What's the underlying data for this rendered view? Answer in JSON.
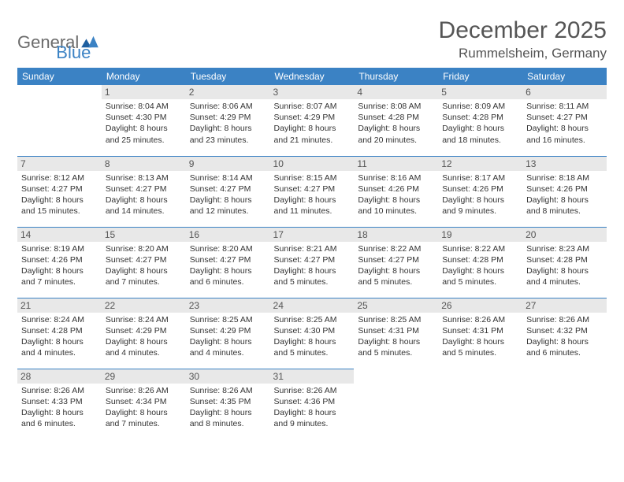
{
  "logo": {
    "word1": "General",
    "word2": "Blue"
  },
  "title": "December 2025",
  "location": "Rummelsheim, Germany",
  "colors": {
    "header_bg": "#3b82c4",
    "header_text": "#ffffff",
    "daynum_bg": "#e8e8e8",
    "text": "#333333",
    "rule": "#3b82c4"
  },
  "day_headers": [
    "Sunday",
    "Monday",
    "Tuesday",
    "Wednesday",
    "Thursday",
    "Friday",
    "Saturday"
  ],
  "weeks": [
    [
      null,
      {
        "n": "1",
        "sr": "Sunrise: 8:04 AM",
        "ss": "Sunset: 4:30 PM",
        "d1": "Daylight: 8 hours",
        "d2": "and 25 minutes."
      },
      {
        "n": "2",
        "sr": "Sunrise: 8:06 AM",
        "ss": "Sunset: 4:29 PM",
        "d1": "Daylight: 8 hours",
        "d2": "and 23 minutes."
      },
      {
        "n": "3",
        "sr": "Sunrise: 8:07 AM",
        "ss": "Sunset: 4:29 PM",
        "d1": "Daylight: 8 hours",
        "d2": "and 21 minutes."
      },
      {
        "n": "4",
        "sr": "Sunrise: 8:08 AM",
        "ss": "Sunset: 4:28 PM",
        "d1": "Daylight: 8 hours",
        "d2": "and 20 minutes."
      },
      {
        "n": "5",
        "sr": "Sunrise: 8:09 AM",
        "ss": "Sunset: 4:28 PM",
        "d1": "Daylight: 8 hours",
        "d2": "and 18 minutes."
      },
      {
        "n": "6",
        "sr": "Sunrise: 8:11 AM",
        "ss": "Sunset: 4:27 PM",
        "d1": "Daylight: 8 hours",
        "d2": "and 16 minutes."
      }
    ],
    [
      {
        "n": "7",
        "sr": "Sunrise: 8:12 AM",
        "ss": "Sunset: 4:27 PM",
        "d1": "Daylight: 8 hours",
        "d2": "and 15 minutes."
      },
      {
        "n": "8",
        "sr": "Sunrise: 8:13 AM",
        "ss": "Sunset: 4:27 PM",
        "d1": "Daylight: 8 hours",
        "d2": "and 14 minutes."
      },
      {
        "n": "9",
        "sr": "Sunrise: 8:14 AM",
        "ss": "Sunset: 4:27 PM",
        "d1": "Daylight: 8 hours",
        "d2": "and 12 minutes."
      },
      {
        "n": "10",
        "sr": "Sunrise: 8:15 AM",
        "ss": "Sunset: 4:27 PM",
        "d1": "Daylight: 8 hours",
        "d2": "and 11 minutes."
      },
      {
        "n": "11",
        "sr": "Sunrise: 8:16 AM",
        "ss": "Sunset: 4:26 PM",
        "d1": "Daylight: 8 hours",
        "d2": "and 10 minutes."
      },
      {
        "n": "12",
        "sr": "Sunrise: 8:17 AM",
        "ss": "Sunset: 4:26 PM",
        "d1": "Daylight: 8 hours",
        "d2": "and 9 minutes."
      },
      {
        "n": "13",
        "sr": "Sunrise: 8:18 AM",
        "ss": "Sunset: 4:26 PM",
        "d1": "Daylight: 8 hours",
        "d2": "and 8 minutes."
      }
    ],
    [
      {
        "n": "14",
        "sr": "Sunrise: 8:19 AM",
        "ss": "Sunset: 4:26 PM",
        "d1": "Daylight: 8 hours",
        "d2": "and 7 minutes."
      },
      {
        "n": "15",
        "sr": "Sunrise: 8:20 AM",
        "ss": "Sunset: 4:27 PM",
        "d1": "Daylight: 8 hours",
        "d2": "and 7 minutes."
      },
      {
        "n": "16",
        "sr": "Sunrise: 8:20 AM",
        "ss": "Sunset: 4:27 PM",
        "d1": "Daylight: 8 hours",
        "d2": "and 6 minutes."
      },
      {
        "n": "17",
        "sr": "Sunrise: 8:21 AM",
        "ss": "Sunset: 4:27 PM",
        "d1": "Daylight: 8 hours",
        "d2": "and 5 minutes."
      },
      {
        "n": "18",
        "sr": "Sunrise: 8:22 AM",
        "ss": "Sunset: 4:27 PM",
        "d1": "Daylight: 8 hours",
        "d2": "and 5 minutes."
      },
      {
        "n": "19",
        "sr": "Sunrise: 8:22 AM",
        "ss": "Sunset: 4:28 PM",
        "d1": "Daylight: 8 hours",
        "d2": "and 5 minutes."
      },
      {
        "n": "20",
        "sr": "Sunrise: 8:23 AM",
        "ss": "Sunset: 4:28 PM",
        "d1": "Daylight: 8 hours",
        "d2": "and 4 minutes."
      }
    ],
    [
      {
        "n": "21",
        "sr": "Sunrise: 8:24 AM",
        "ss": "Sunset: 4:28 PM",
        "d1": "Daylight: 8 hours",
        "d2": "and 4 minutes."
      },
      {
        "n": "22",
        "sr": "Sunrise: 8:24 AM",
        "ss": "Sunset: 4:29 PM",
        "d1": "Daylight: 8 hours",
        "d2": "and 4 minutes."
      },
      {
        "n": "23",
        "sr": "Sunrise: 8:25 AM",
        "ss": "Sunset: 4:29 PM",
        "d1": "Daylight: 8 hours",
        "d2": "and 4 minutes."
      },
      {
        "n": "24",
        "sr": "Sunrise: 8:25 AM",
        "ss": "Sunset: 4:30 PM",
        "d1": "Daylight: 8 hours",
        "d2": "and 5 minutes."
      },
      {
        "n": "25",
        "sr": "Sunrise: 8:25 AM",
        "ss": "Sunset: 4:31 PM",
        "d1": "Daylight: 8 hours",
        "d2": "and 5 minutes."
      },
      {
        "n": "26",
        "sr": "Sunrise: 8:26 AM",
        "ss": "Sunset: 4:31 PM",
        "d1": "Daylight: 8 hours",
        "d2": "and 5 minutes."
      },
      {
        "n": "27",
        "sr": "Sunrise: 8:26 AM",
        "ss": "Sunset: 4:32 PM",
        "d1": "Daylight: 8 hours",
        "d2": "and 6 minutes."
      }
    ],
    [
      {
        "n": "28",
        "sr": "Sunrise: 8:26 AM",
        "ss": "Sunset: 4:33 PM",
        "d1": "Daylight: 8 hours",
        "d2": "and 6 minutes."
      },
      {
        "n": "29",
        "sr": "Sunrise: 8:26 AM",
        "ss": "Sunset: 4:34 PM",
        "d1": "Daylight: 8 hours",
        "d2": "and 7 minutes."
      },
      {
        "n": "30",
        "sr": "Sunrise: 8:26 AM",
        "ss": "Sunset: 4:35 PM",
        "d1": "Daylight: 8 hours",
        "d2": "and 8 minutes."
      },
      {
        "n": "31",
        "sr": "Sunrise: 8:26 AM",
        "ss": "Sunset: 4:36 PM",
        "d1": "Daylight: 8 hours",
        "d2": "and 9 minutes."
      },
      null,
      null,
      null
    ]
  ]
}
